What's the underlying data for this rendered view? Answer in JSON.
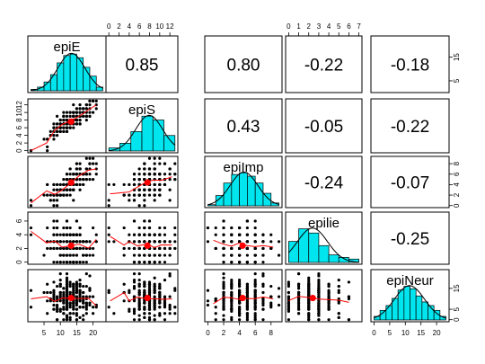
{
  "chart_data": {
    "type": "scatter",
    "variables": [
      "epiE",
      "epiS",
      "epiImp",
      "epilie",
      "epiNeur"
    ],
    "ranges": {
      "epiE": [
        1,
        23
      ],
      "epiS": [
        0,
        13
      ],
      "epiImp": [
        0,
        9
      ],
      "epilie": [
        0,
        7
      ],
      "epiNeur": [
        0,
        23
      ]
    },
    "correlations": [
      {
        "row": 0,
        "col": 1,
        "label": "0.85"
      },
      {
        "row": 0,
        "col": 2,
        "label": "0.80"
      },
      {
        "row": 0,
        "col": 3,
        "label": "-0.22"
      },
      {
        "row": 0,
        "col": 4,
        "label": "-0.18"
      },
      {
        "row": 1,
        "col": 2,
        "label": "0.43"
      },
      {
        "row": 1,
        "col": 3,
        "label": "-0.05"
      },
      {
        "row": 1,
        "col": 4,
        "label": "-0.22"
      },
      {
        "row": 2,
        "col": 3,
        "label": "-0.24"
      },
      {
        "row": 2,
        "col": 4,
        "label": "-0.07"
      },
      {
        "row": 3,
        "col": 4,
        "label": "-0.25"
      }
    ],
    "histograms": {
      "epiE": {
        "breaks": [
          1,
          3,
          5,
          7,
          9,
          11,
          13,
          15,
          17,
          19,
          21,
          23
        ],
        "counts": [
          2,
          5,
          12,
          22,
          38,
          48,
          50,
          45,
          32,
          20,
          5
        ]
      },
      "epiS": {
        "breaks": [
          0,
          2,
          4,
          6,
          8,
          10,
          12
        ],
        "counts": [
          8,
          20,
          50,
          90,
          80,
          40
        ]
      },
      "epiImp": {
        "breaks": [
          0,
          1,
          2,
          3,
          4,
          5,
          6,
          7,
          8,
          9
        ],
        "counts": [
          2,
          18,
          40,
          55,
          58,
          52,
          40,
          22,
          5
        ]
      },
      "epilie": {
        "breaks": [
          0,
          1,
          2,
          3,
          4,
          5,
          6,
          7
        ],
        "counts": [
          50,
          80,
          70,
          40,
          18,
          12,
          8
        ]
      },
      "epiNeur": {
        "breaks": [
          0,
          2,
          4,
          6,
          8,
          10,
          12,
          14,
          16,
          18,
          20,
          22,
          24
        ],
        "counts": [
          3,
          8,
          12,
          18,
          25,
          28,
          26,
          20,
          15,
          12,
          8,
          3
        ]
      }
    },
    "means": {
      "epiE": 13.3,
      "epiS": 7.6,
      "epiImp": 4.4,
      "epilie": 2.4,
      "epiNeur": 10.4
    },
    "top_axes": [
      {
        "col": 1,
        "ticks": [
          "0",
          "2",
          "4",
          "6",
          "8",
          "10",
          "12"
        ],
        "values": [
          0,
          2,
          4,
          6,
          8,
          10,
          12
        ]
      },
      {
        "col": 3,
        "ticks": [
          "0",
          "1",
          "2",
          "3",
          "4",
          "5",
          "6",
          "7"
        ],
        "values": [
          0,
          1,
          2,
          3,
          4,
          5,
          6,
          7
        ]
      }
    ],
    "bottom_axes": [
      {
        "col": 0,
        "ticks": [
          "5",
          "10",
          "15",
          "20"
        ],
        "values": [
          5,
          10,
          15,
          20
        ]
      },
      {
        "col": 2,
        "ticks": [
          "0",
          "2",
          "4",
          "6",
          "8"
        ],
        "values": [
          0,
          2,
          4,
          6,
          8
        ]
      },
      {
        "col": 4,
        "ticks": [
          "0",
          "5",
          "10",
          "15",
          "20"
        ],
        "values": [
          0,
          5,
          10,
          15,
          20
        ]
      }
    ],
    "left_axes": [
      {
        "row": 1,
        "ticks": [
          "0",
          "2",
          "4",
          "6",
          "8",
          "10",
          "12"
        ],
        "values": [
          0,
          2,
          4,
          6,
          8,
          10,
          12
        ]
      },
      {
        "row": 3,
        "ticks": [
          "0",
          "2",
          "4",
          "6"
        ],
        "values": [
          0,
          2,
          4,
          6
        ]
      }
    ],
    "right_axes": [
      {
        "row": 0,
        "ticks": [
          "5",
          "15"
        ],
        "values": [
          5,
          15
        ]
      },
      {
        "row": 2,
        "ticks": [
          "0",
          "2",
          "4",
          "6",
          "8"
        ],
        "values": [
          0,
          2,
          4,
          6,
          8
        ]
      },
      {
        "row": 4,
        "ticks": [
          "0",
          "5",
          "15"
        ],
        "values": [
          0,
          5,
          15
        ]
      }
    ],
    "colors": {
      "hist_fill": "#00e5ee",
      "mean_point": "#ff0000",
      "smoother": "#ff0000",
      "points": "#000000"
    }
  }
}
